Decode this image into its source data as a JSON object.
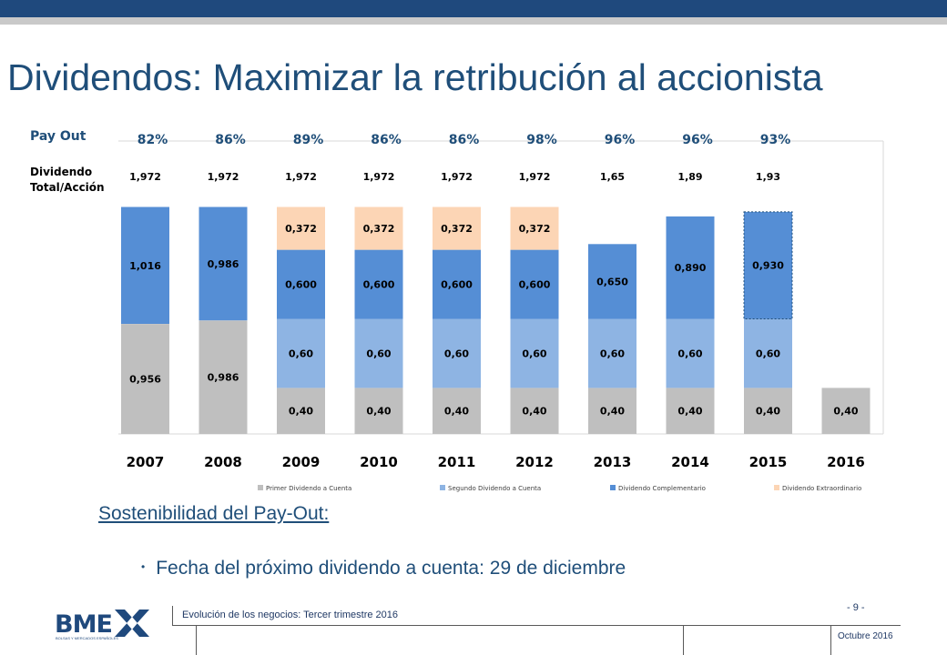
{
  "title": "Dividendos: Maximizar la retribución al accionista",
  "labels": {
    "pay_out": "Pay Out",
    "dividendo_line1": "Dividendo",
    "dividendo_line2": "Total/Acción"
  },
  "chart_data": {
    "type": "bar",
    "stacked": true,
    "categories": [
      "2007",
      "2008",
      "2009",
      "2010",
      "2011",
      "2012",
      "2013",
      "2014",
      "2015",
      "2016"
    ],
    "pay_out": [
      "82%",
      "86%",
      "89%",
      "86%",
      "86%",
      "98%",
      "96%",
      "96%",
      "93%"
    ],
    "dividendo_total": [
      "1,972",
      "1,972",
      "1,972",
      "1,972",
      "1,972",
      "1,972",
      "1,65",
      "1,89",
      "1,93"
    ],
    "series": [
      {
        "name": "Primer Dividendo a Cuenta",
        "color": "#bfbfbf",
        "values": [
          0.956,
          0.986,
          0.4,
          0.4,
          0.4,
          0.4,
          0.4,
          0.4,
          0.4,
          0.4
        ],
        "labels": [
          "0,956",
          "0,986",
          "0,40",
          "0,40",
          "0,40",
          "0,40",
          "0,40",
          "0,40",
          "0,40",
          "0,40"
        ]
      },
      {
        "name": "Segundo Dividendo a Cuenta",
        "color": "#8eb4e3",
        "values": [
          null,
          null,
          0.6,
          0.6,
          0.6,
          0.6,
          0.6,
          0.6,
          0.6,
          null
        ],
        "labels": [
          "",
          "",
          "0,60",
          "0,60",
          "0,60",
          "0,60",
          "0,60",
          "0,60",
          "0,60",
          ""
        ]
      },
      {
        "name": "Dividendo Complementario",
        "color": "#558ed5",
        "values": [
          1.016,
          0.986,
          0.6,
          0.6,
          0.6,
          0.6,
          0.65,
          0.89,
          0.93,
          null
        ],
        "labels": [
          "1,016",
          "0,986",
          "0,600",
          "0,600",
          "0,600",
          "0,600",
          "0,650",
          "0,890",
          "0,930",
          ""
        ]
      },
      {
        "name": "Dividendo Extraordinario",
        "color": "#fcd5b5",
        "values": [
          null,
          null,
          0.372,
          0.372,
          0.372,
          0.372,
          null,
          null,
          null,
          null
        ],
        "labels": [
          "",
          "",
          "0,372",
          "0,372",
          "0,372",
          "0,372",
          "",
          "",
          "",
          ""
        ]
      }
    ],
    "ylim": [
      0,
      2.0
    ],
    "legend_position": "bottom"
  },
  "subtitle": "Sostenibilidad del Pay-Out:",
  "bullet": "Fecha del próximo dividendo a cuenta: 29 de diciembre",
  "footer": {
    "left": "Evolución de los negocios: Tercer trimestre 2016",
    "page": "- 9 -",
    "date": "Octubre 2016"
  },
  "logo": {
    "text": "BME",
    "tagline": "BOLSAS Y MERCADOS ESPAÑOLES"
  }
}
